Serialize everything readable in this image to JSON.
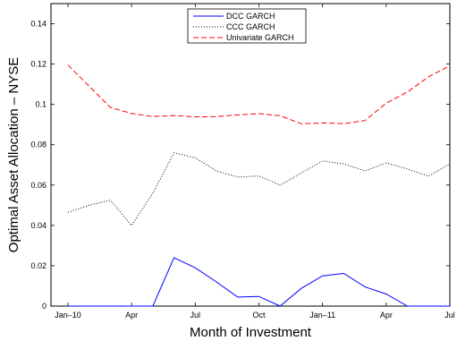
{
  "chart_data": {
    "type": "line",
    "title": "",
    "xlabel": "Month of Investment",
    "ylabel": "Optimal Asset Allocation – NYSE",
    "x_ticks": [
      {
        "x": 0,
        "label": "Jan–10"
      },
      {
        "x": 3,
        "label": "Apr"
      },
      {
        "x": 6,
        "label": "Jul"
      },
      {
        "x": 9,
        "label": "Oct"
      },
      {
        "x": 12,
        "label": "Jan–11"
      },
      {
        "x": 15,
        "label": "Apr"
      },
      {
        "x": 18,
        "label": "Jul"
      }
    ],
    "y_ticks": [
      {
        "v": 0,
        "label": "0"
      },
      {
        "v": 0.02,
        "label": "0.02"
      },
      {
        "v": 0.04,
        "label": "0.04"
      },
      {
        "v": 0.06,
        "label": "0.06"
      },
      {
        "v": 0.08,
        "label": "0.08"
      },
      {
        "v": 0.1,
        "label": "0.1"
      },
      {
        "v": 0.12,
        "label": "0.12"
      },
      {
        "v": 0.14,
        "label": "0.14"
      }
    ],
    "xlim": [
      -0.8,
      18
    ],
    "ylim": [
      0,
      0.15
    ],
    "grid": false,
    "legend_position": "top-center",
    "series": [
      {
        "name": "DCC GARCH",
        "color": "#0000ff",
        "dash": "solid",
        "values": [
          0,
          0,
          0,
          0,
          0,
          0.024,
          0.019,
          0.012,
          0.0045,
          0.0048,
          0,
          0.0088,
          0.015,
          0.0162,
          0.0095,
          0.006,
          0,
          0,
          0
        ]
      },
      {
        "name": "CCC GARCH",
        "color": "#000000",
        "dash": "dotted",
        "values": [
          0.0465,
          0.05,
          0.0525,
          0.04,
          0.056,
          0.076,
          0.0735,
          0.067,
          0.064,
          0.0645,
          0.06,
          0.066,
          0.072,
          0.0705,
          0.067,
          0.071,
          0.068,
          0.0645,
          0.0705
        ]
      },
      {
        "name": "Univariate GARCH",
        "color": "#ff0000",
        "dash": "dashed",
        "values": [
          0.1195,
          0.109,
          0.0985,
          0.0955,
          0.094,
          0.0945,
          0.0938,
          0.094,
          0.0948,
          0.0954,
          0.0944,
          0.0904,
          0.0908,
          0.0905,
          0.092,
          0.1006,
          0.1062,
          0.1137,
          0.1192
        ]
      }
    ]
  }
}
